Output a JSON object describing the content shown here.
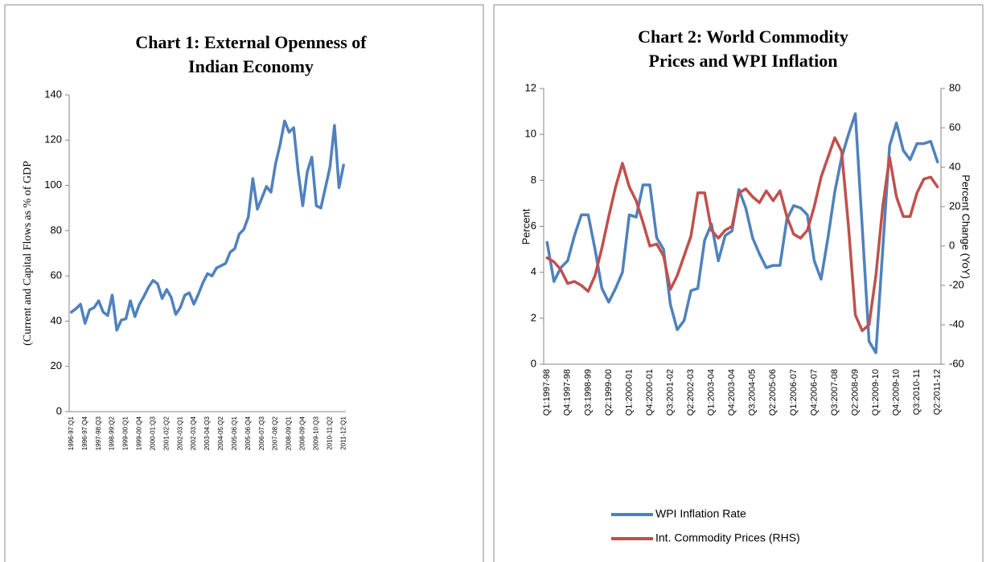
{
  "chart_data": [
    {
      "type": "line",
      "title": "Chart 1: External Openness of Indian Economy",
      "y_label": "(Current and Capital Flows as % of GDP",
      "categories": [
        "1996-97:Q1",
        null,
        null,
        "1996-97:Q4",
        null,
        null,
        "1997-98:Q3",
        null,
        null,
        "1998-99:Q2",
        null,
        null,
        "1999-00:Q1",
        null,
        null,
        "1999-00:Q4",
        null,
        null,
        "2000-01:Q3",
        null,
        null,
        "2001-02:Q2",
        null,
        null,
        "2002-03:Q1",
        null,
        null,
        "2002-03:Q4",
        null,
        null,
        "2003-04:Q3",
        null,
        null,
        "2004-05:Q2",
        null,
        null,
        "2005-06:Q1",
        null,
        null,
        "2005-06:Q4",
        null,
        null,
        "2006-07:Q3",
        null,
        null,
        "2007-08:Q2",
        null,
        null,
        "2008-09:Q1",
        null,
        null,
        "2008-09:Q4",
        null,
        null,
        "2009-10:Q3",
        null,
        null,
        "2010-11:Q2",
        null,
        null,
        "2011-12:Q1"
      ],
      "values": [
        44,
        45.5,
        47.5,
        39,
        45,
        46,
        49,
        44,
        42.5,
        51.5,
        36,
        40.5,
        41,
        49,
        42,
        47.5,
        51,
        55,
        58,
        56.5,
        50,
        54,
        50.5,
        43,
        46,
        51.5,
        52.5,
        47.5,
        52,
        57,
        61,
        60,
        63.5,
        64.5,
        65.5,
        70.5,
        72,
        78.5,
        80.5,
        86,
        103,
        89.5,
        94.5,
        99.5,
        97,
        109.5,
        118,
        128.5,
        123.5,
        125.5,
        106,
        91,
        106,
        112.5,
        91,
        90,
        99,
        108,
        126.5,
        99,
        109
      ],
      "color": "#4f81bd",
      "ylim": [
        0,
        140
      ],
      "yticks": [
        0,
        20,
        40,
        60,
        80,
        100,
        120,
        140
      ],
      "grid": false
    },
    {
      "type": "line",
      "title": "Chart 2: World Commodity Prices and WPI Inflation",
      "y_label": "Percent",
      "y2_label": "Percent Change (YoY)",
      "categories": [
        "Q1:1997-98",
        null,
        null,
        "Q4:1997-98",
        null,
        null,
        "Q3:1998-99",
        null,
        null,
        "Q2:1999-00",
        null,
        null,
        "Q1:2000-01",
        null,
        null,
        "Q4:2000-01",
        null,
        null,
        "Q3:2001-02",
        null,
        null,
        "Q2:2002-03",
        null,
        null,
        "Q1:2003-04",
        null,
        null,
        "Q4:2003-04",
        null,
        null,
        "Q3:2004-05",
        null,
        null,
        "Q2:2005-06",
        null,
        null,
        "Q1:2006-07",
        null,
        null,
        "Q4:2006-07",
        null,
        null,
        "Q3:2007-08",
        null,
        null,
        "Q2:2008-09",
        null,
        null,
        "Q1:2009-10",
        null,
        null,
        "Q4:2009-10",
        null,
        null,
        "Q3:2010-11",
        null,
        null,
        "Q2:2011-12"
      ],
      "series": [
        {
          "name": "WPI Inflation Rate",
          "color": "#4f81bd",
          "values": [
            5.3,
            3.6,
            4.2,
            4.5,
            5.6,
            6.5,
            6.5,
            5.0,
            3.3,
            2.7,
            3.3,
            4.0,
            6.5,
            6.4,
            7.8,
            7.8,
            5.5,
            5.0,
            2.6,
            1.5,
            1.9,
            3.2,
            3.3,
            5.4,
            6.1,
            4.5,
            5.6,
            5.8,
            7.6,
            6.8,
            5.5,
            4.8,
            4.2,
            4.3,
            4.3,
            6.3,
            6.9,
            6.8,
            6.5,
            4.5,
            3.7,
            5.5,
            7.5,
            9.0,
            10.0,
            10.9,
            6.0,
            1.0,
            0.5,
            5.0,
            9.5,
            10.5,
            9.3,
            8.9,
            9.6,
            9.6,
            9.7,
            8.8
          ]
        },
        {
          "name": "Int. Commodity Prices (RHS)",
          "color": "#c0504d",
          "axis": "y2",
          "values": [
            -6,
            -8,
            -12,
            -19,
            -18,
            -20,
            -23,
            -15,
            -1,
            15,
            30,
            42,
            30,
            23,
            12,
            0,
            1,
            -5,
            -22,
            -15,
            -5,
            5,
            27,
            27,
            8,
            4,
            8,
            10,
            27,
            29,
            25,
            22,
            28,
            23,
            28,
            15,
            6,
            4,
            8,
            20,
            35,
            45,
            55,
            48,
            10,
            -35,
            -43,
            -40,
            -15,
            20,
            45,
            25,
            15,
            15,
            27,
            34,
            35,
            30
          ]
        }
      ],
      "ylim": [
        0,
        12
      ],
      "yticks": [
        0,
        2,
        4,
        6,
        8,
        10,
        12
      ],
      "y2lim": [
        -60,
        80
      ],
      "y2ticks": [
        -60,
        -40,
        -20,
        0,
        20,
        40,
        60,
        80
      ],
      "grid": false,
      "legend": "bottom"
    }
  ]
}
